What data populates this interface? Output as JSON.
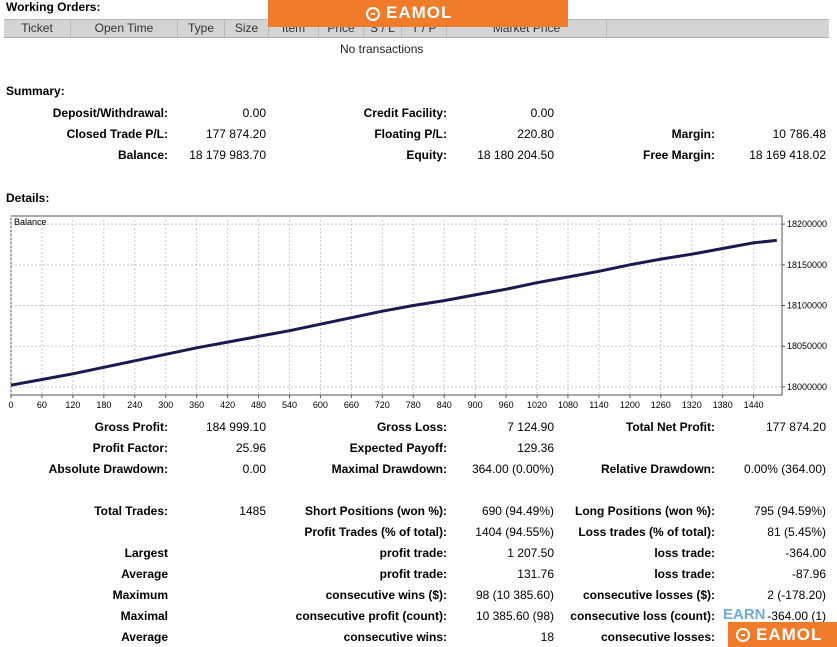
{
  "working_orders": {
    "title": "Working Orders:",
    "columns": [
      "Ticket",
      "Open Time",
      "Type",
      "Size",
      "Item",
      "Price",
      "S / L",
      "T / P",
      "Market Price"
    ],
    "empty_text": "No transactions"
  },
  "watermark": {
    "text": "EAMOL",
    "color": "#f07b2a",
    "partial_text": "EARN"
  },
  "summary": {
    "title": "Summary:",
    "deposit_label": "Deposit/Withdrawal:",
    "deposit_value": "0.00",
    "credit_label": "Credit Facility:",
    "credit_value": "0.00",
    "closed_pl_label": "Closed Trade P/L:",
    "closed_pl_value": "177 874.20",
    "floating_pl_label": "Floating P/L:",
    "floating_pl_value": "220.80",
    "margin_label": "Margin:",
    "margin_value": "10 786.48",
    "balance_label": "Balance:",
    "balance_value": "18 179 983.70",
    "equity_label": "Equity:",
    "equity_value": "18 180 204.50",
    "free_margin_label": "Free Margin:",
    "free_margin_value": "18 169 418.02"
  },
  "details": {
    "title": "Details:"
  },
  "chart_data": {
    "type": "line",
    "title": "Balance",
    "x_ticks": [
      0,
      60,
      120,
      180,
      240,
      300,
      360,
      420,
      480,
      540,
      600,
      660,
      720,
      780,
      840,
      900,
      960,
      1020,
      1080,
      1140,
      1200,
      1260,
      1320,
      1380,
      1440
    ],
    "y_ticks": [
      18000000,
      18050000,
      18100000,
      18150000,
      18200000
    ],
    "xlim": [
      0,
      1495
    ],
    "ylim": [
      17990000,
      18210000
    ],
    "grid": true,
    "line_color": "#1a1a4e",
    "series": [
      {
        "x": [
          0,
          60,
          120,
          180,
          240,
          300,
          360,
          420,
          480,
          540,
          600,
          660,
          720,
          780,
          840,
          900,
          960,
          1020,
          1080,
          1140,
          1200,
          1260,
          1320,
          1380,
          1440,
          1485
        ],
        "values": [
          18002000,
          18009000,
          18016000,
          18024000,
          18032000,
          18040000,
          18048000,
          18055000,
          18062000,
          18069000,
          18077000,
          18085000,
          18093000,
          18100000,
          18106000,
          18113000,
          18120000,
          18128000,
          18135000,
          18142000,
          18150000,
          18157000,
          18163000,
          18170000,
          18177000,
          18180000
        ]
      }
    ]
  },
  "stats": {
    "gross_profit_label": "Gross Profit:",
    "gross_profit_value": "184 999.10",
    "gross_loss_label": "Gross Loss:",
    "gross_loss_value": "7 124.90",
    "total_net_label": "Total Net Profit:",
    "total_net_value": "177 874.20",
    "profit_factor_label": "Profit Factor:",
    "profit_factor_value": "25.96",
    "expected_payoff_label": "Expected Payoff:",
    "expected_payoff_value": "129.36",
    "abs_dd_label": "Absolute Drawdown:",
    "abs_dd_value": "0.00",
    "max_dd_label": "Maximal Drawdown:",
    "max_dd_value": "364.00 (0.00%)",
    "rel_dd_label": "Relative Drawdown:",
    "rel_dd_value": "0.00% (364.00)",
    "total_trades_label": "Total Trades:",
    "total_trades_value": "1485",
    "short_label": "Short Positions (won %):",
    "short_value": "690 (94.49%)",
    "long_label": "Long Positions (won %):",
    "long_value": "795 (94.59%)",
    "profit_trades_label": "Profit Trades (% of total):",
    "profit_trades_value": "1404 (94.55%)",
    "loss_trades_label": "Loss trades (% of total):",
    "loss_trades_value": "81 (5.45%)",
    "largest_label": "Largest",
    "largest_profit_label": "profit trade:",
    "largest_profit_value": "1 207.50",
    "largest_loss_label": "loss trade:",
    "largest_loss_value": "-364.00",
    "average_label": "Average",
    "average_profit_label": "profit trade:",
    "average_profit_value": "131.76",
    "average_loss_label": "loss trade:",
    "average_loss_value": "-87.96",
    "maximum_label": "Maximum",
    "max_wins_label": "consecutive wins ($):",
    "max_wins_value": "98 (10 385.60)",
    "max_losses_label": "consecutive losses ($):",
    "max_losses_value": "2 (-178.20)",
    "maximal_label": "Maximal",
    "maximal_profit_label": "consecutive profit (count):",
    "maximal_profit_value": "10 385.60 (98)",
    "maximal_loss_label": "consecutive loss (count):",
    "maximal_loss_value": "-364.00 (1)",
    "average2_label": "Average",
    "avg_cons_wins_label": "consecutive wins:",
    "avg_cons_wins_value": "18",
    "avg_cons_losses_label": "consecutive losses:"
  }
}
